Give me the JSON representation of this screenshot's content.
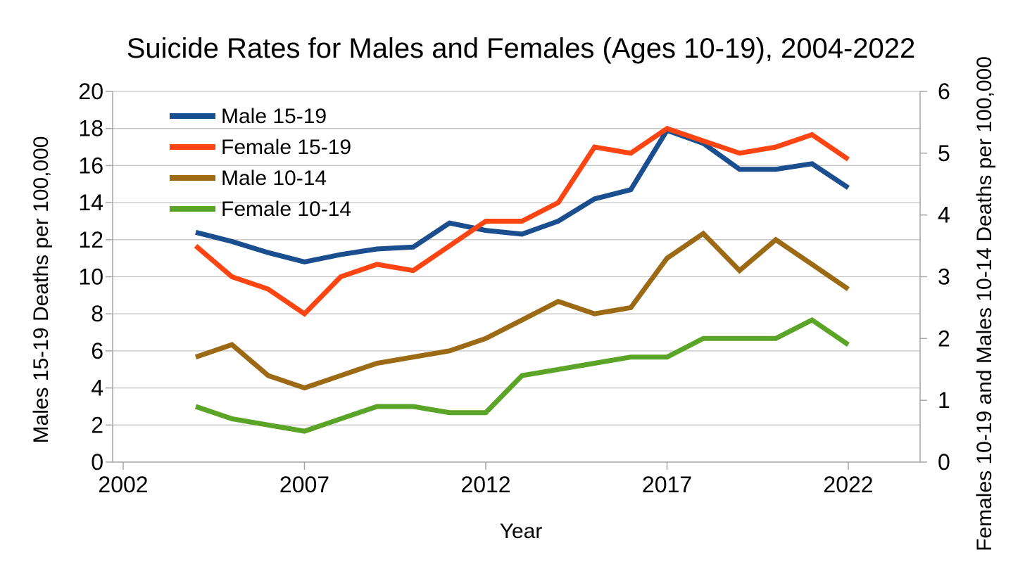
{
  "title": "Suicide Rates for Males and Females (Ages 10-19), 2004-2022",
  "chart_data": {
    "type": "line",
    "title": "Suicide Rates for Males and Females (Ages 10-19), 2004-2022",
    "xlabel": "Year",
    "ylabel_left": "Males 15-19 Deaths per 100,000",
    "ylabel_right": "Females 10-19 and Males 10-14 Deaths per 100,000",
    "x": [
      2004,
      2005,
      2006,
      2007,
      2008,
      2009,
      2010,
      2011,
      2012,
      2013,
      2014,
      2015,
      2016,
      2017,
      2018,
      2019,
      2020,
      2021,
      2022
    ],
    "x_ticks": [
      2002,
      2007,
      2012,
      2017,
      2022
    ],
    "xlim": [
      2001.7,
      2024.0
    ],
    "ylim_left": [
      0,
      20
    ],
    "yticks_left": [
      0,
      2,
      4,
      6,
      8,
      10,
      12,
      14,
      16,
      18,
      20
    ],
    "ylim_right": [
      0,
      6
    ],
    "yticks_right": [
      0,
      1,
      2,
      3,
      4,
      5,
      6
    ],
    "grid": true,
    "legend_position": "top-left-inside",
    "series": [
      {
        "name": "Male 15-19",
        "axis": "left",
        "color": "#1a4e8e",
        "values": [
          12.4,
          11.9,
          11.3,
          10.8,
          11.2,
          11.5,
          11.6,
          12.9,
          12.5,
          12.3,
          13.0,
          14.2,
          14.7,
          17.9,
          17.2,
          15.8,
          15.8,
          16.1,
          14.8
        ]
      },
      {
        "name": "Female 15-19",
        "axis": "right",
        "color": "#fc4512",
        "values": [
          3.5,
          3.0,
          2.8,
          2.4,
          3.0,
          3.2,
          3.1,
          3.5,
          3.9,
          3.9,
          4.2,
          5.1,
          5.0,
          5.4,
          5.2,
          5.0,
          5.1,
          5.3,
          4.9
        ]
      },
      {
        "name": "Male 10-14",
        "axis": "right",
        "color": "#9c6a14",
        "values": [
          1.7,
          1.9,
          1.4,
          1.2,
          1.4,
          1.6,
          1.7,
          1.8,
          2.0,
          2.3,
          2.6,
          2.4,
          2.5,
          3.3,
          3.7,
          3.1,
          3.6,
          3.2,
          2.8
        ]
      },
      {
        "name": "Female 10-14",
        "axis": "right",
        "color": "#5aa427",
        "values": [
          0.9,
          0.7,
          0.6,
          0.5,
          0.7,
          0.9,
          0.9,
          0.8,
          0.8,
          1.4,
          1.5,
          1.6,
          1.7,
          1.7,
          2.0,
          2.0,
          2.0,
          2.3,
          1.9
        ]
      }
    ],
    "style": {
      "gridline_color": "#c4c4c4",
      "axis_color": "#a6a6a6",
      "text_color": "#000000",
      "background": "#ffffff"
    }
  }
}
